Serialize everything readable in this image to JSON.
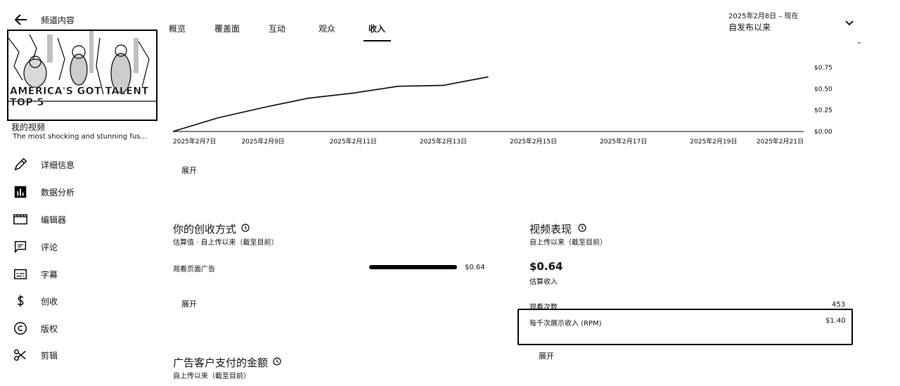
{
  "sidebar": {
    "title": "频道内容",
    "thumbnail_text": "AMERICA'S GOT TALENT TOP 5",
    "video_label": "我的视频",
    "video_desc": "The most shocking and stunning fus...",
    "items": [
      {
        "label": "详细信息",
        "icon": "pencil-icon"
      },
      {
        "label": "数据分析",
        "icon": "analytics-icon"
      },
      {
        "label": "编辑器",
        "icon": "editor-icon"
      },
      {
        "label": "评论",
        "icon": "comment-icon"
      },
      {
        "label": "字幕",
        "icon": "subtitles-icon"
      },
      {
        "label": "创收",
        "icon": "dollar-icon"
      },
      {
        "label": "版权",
        "icon": "copyright-icon"
      },
      {
        "label": "剪辑",
        "icon": "scissors-icon"
      }
    ]
  },
  "tabs": [
    "概览",
    "覆盖面",
    "互动",
    "观众",
    "收入"
  ],
  "active_tab": "收入",
  "date_range": {
    "range": "2025年2月8日 – 现在",
    "label": "自发布以来"
  },
  "chart_data": {
    "type": "line",
    "x": [
      "2025年2月7日",
      "2025年2月8日",
      "2025年2月9日",
      "2025年2月10日",
      "2025年2月11日",
      "2025年2月12日",
      "2025年2月13日",
      "2025年2月14日"
    ],
    "values": [
      0.0,
      0.16,
      0.28,
      0.39,
      0.45,
      0.53,
      0.54,
      0.64
    ],
    "x_ticks": [
      "2025年2月7日",
      "2025年2月9日",
      "2025年2月11日",
      "2025年2月13日",
      "2025年2月15日",
      "2025年2月17日",
      "2025年2月19日",
      "2025年2月21日"
    ],
    "y_ticks": [
      "$0.00",
      "$0.25",
      "$0.50",
      "$0.75"
    ],
    "ylim": [
      0,
      0.75
    ],
    "color": "#000000"
  },
  "chart_expand": "展开",
  "monetization": {
    "title": "你的创收方式",
    "subtitle": "估算值 · 自上传以来（截至目前）",
    "row_label": "观看页面广告",
    "row_value": "$0.64",
    "row_fraction": 1.0,
    "expand": "展开"
  },
  "ad_paid": {
    "title": "广告客户支付的金额",
    "subtitle": "自上传以来（截至目前）"
  },
  "performance": {
    "title": "视频表现",
    "subtitle": "自上传以来（截至目前）",
    "revenue": "$0.64",
    "revenue_label": "估算收入",
    "views_label": "观看次数",
    "views_value": "453",
    "rpm_label": "每千次展示收入 (RPM)",
    "rpm_value": "$1.40",
    "expand": "展开"
  }
}
